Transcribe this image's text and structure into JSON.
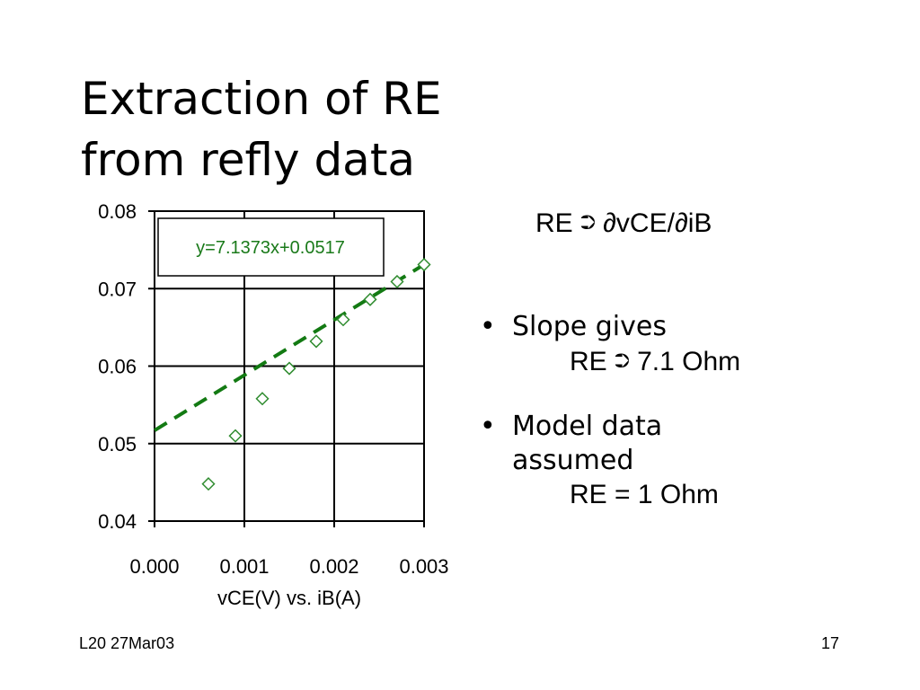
{
  "slide": {
    "title_line1": "Extraction of RE",
    "title_line2": "from refly data",
    "formula": {
      "lhs": "RE",
      "arrow": "⮊",
      "rhs": "∂vCE/∂iB"
    },
    "bullets": [
      {
        "marker": "•",
        "lines": [
          "Slope gives"
        ],
        "sub": {
          "prefix": "RE",
          "arrow": "⮊",
          "suffix": "7.1 Ohm"
        }
      },
      {
        "marker": "•",
        "lines": [
          "Model data",
          "assumed"
        ],
        "sub": {
          "text": "RE = 1 Ohm"
        }
      }
    ],
    "footer_left": "L20 27Mar03",
    "footer_right": "17"
  },
  "chart_data": {
    "type": "scatter",
    "xlabel": "vCE(V) vs. iB(A)",
    "ylabel": "",
    "xlim": [
      0.0,
      0.003
    ],
    "ylim": [
      0.04,
      0.08
    ],
    "x_ticks": [
      "0.000",
      "0.001",
      "0.002",
      "0.003"
    ],
    "y_ticks": [
      "0.04",
      "0.05",
      "0.06",
      "0.07",
      "0.08"
    ],
    "grid": true,
    "marker_color": "#2e8b2e",
    "trendline_color": "#137a13",
    "series": [
      {
        "x": [
          0.0006,
          0.0009,
          0.0012,
          0.0015,
          0.0018,
          0.0021,
          0.0024,
          0.0027,
          0.003
        ],
        "y": [
          0.0448,
          0.051,
          0.0558,
          0.0597,
          0.0632,
          0.066,
          0.0686,
          0.0709,
          0.0731
        ]
      }
    ],
    "trendline": {
      "slope": 7.1373,
      "intercept": 0.0517,
      "equation": "y=7.1373x+0.0517"
    }
  }
}
